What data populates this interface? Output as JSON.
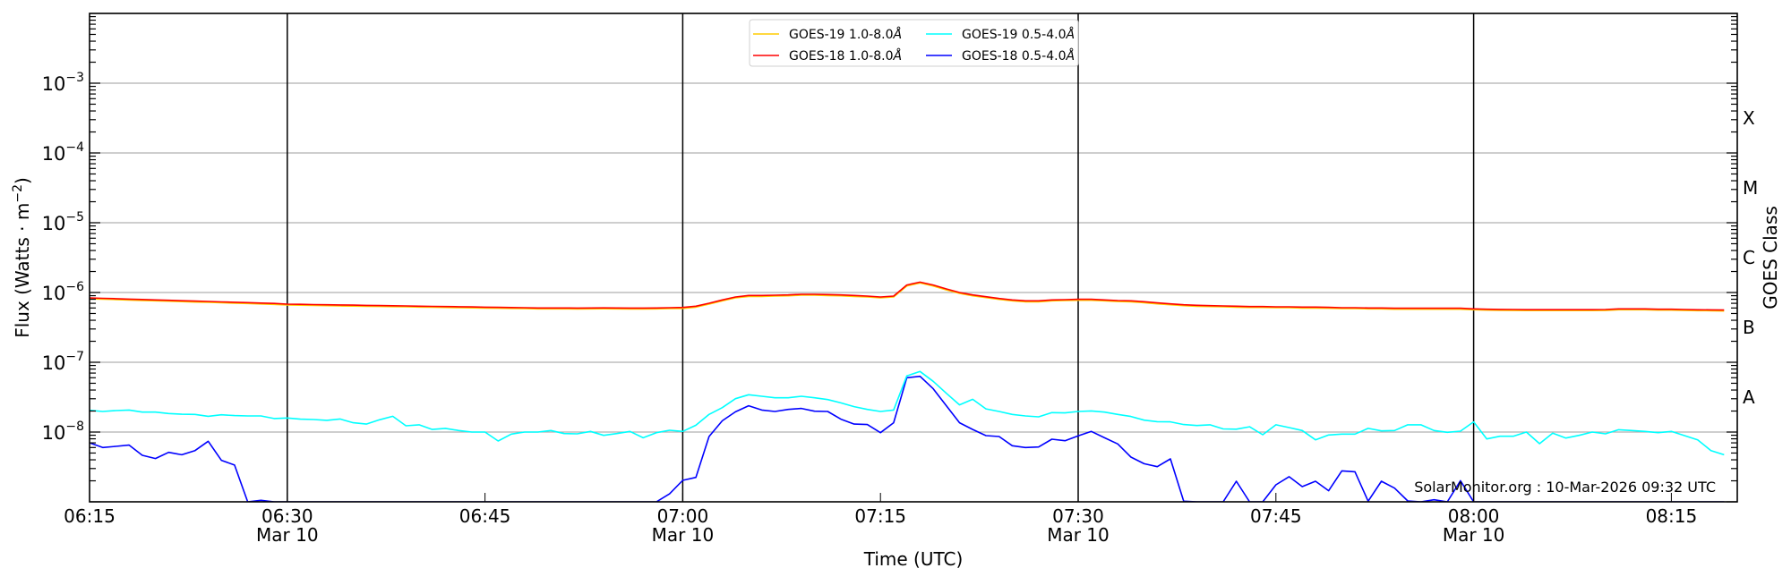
{
  "chart_data": {
    "type": "line",
    "xlabel": "Time (UTC)",
    "ylabel": "Flux (Watts · m",
    "ylabel_exponent": "−2",
    "ylabel_close": ")",
    "right_ylabel": "GOES Class",
    "yscale": "log",
    "ylim": [
      1e-09,
      0.01
    ],
    "xlim": [
      "06:15",
      "08:20"
    ],
    "grid": "horizontal at each decade",
    "legend_placement": "top-center",
    "watermark": "SolarMonitor.org : 10-Mar-2026 09:32 UTC",
    "x_ticks": [
      {
        "time": "06:15",
        "label": "06:15",
        "date": ""
      },
      {
        "time": "06:30",
        "label": "06:30",
        "date": "Mar 10"
      },
      {
        "time": "06:45",
        "label": "06:45",
        "date": ""
      },
      {
        "time": "07:00",
        "label": "07:00",
        "date": "Mar 10"
      },
      {
        "time": "07:15",
        "label": "07:15",
        "date": ""
      },
      {
        "time": "07:30",
        "label": "07:30",
        "date": "Mar 10"
      },
      {
        "time": "07:45",
        "label": "07:45",
        "date": ""
      },
      {
        "time": "08:00",
        "label": "08:00",
        "date": "Mar 10"
      },
      {
        "time": "08:15",
        "label": "08:15",
        "date": ""
      }
    ],
    "vertical_lines": [
      "06:30",
      "07:00",
      "07:30",
      "08:00"
    ],
    "y_ticks": [
      {
        "value": 0.001,
        "base": "10",
        "exp": "−3"
      },
      {
        "value": 0.0001,
        "base": "10",
        "exp": "−4"
      },
      {
        "value": 1e-05,
        "base": "10",
        "exp": "−5"
      },
      {
        "value": 1e-06,
        "base": "10",
        "exp": "−6"
      },
      {
        "value": 1e-07,
        "base": "10",
        "exp": "−7"
      },
      {
        "value": 1e-08,
        "base": "10",
        "exp": "−8"
      }
    ],
    "goes_classes": [
      {
        "label": "X",
        "value": 0.000316
      },
      {
        "label": "M",
        "value": 3.16e-05
      },
      {
        "label": "C",
        "value": 3.16e-06
      },
      {
        "label": "B",
        "value": 3.16e-07
      },
      {
        "label": "A",
        "value": 3.16e-08
      }
    ],
    "x": [
      "06:15",
      "06:16",
      "06:17",
      "06:18",
      "06:19",
      "06:20",
      "06:21",
      "06:22",
      "06:23",
      "06:24",
      "06:25",
      "06:26",
      "06:27",
      "06:28",
      "06:29",
      "06:30",
      "06:31",
      "06:32",
      "06:33",
      "06:34",
      "06:35",
      "06:36",
      "06:37",
      "06:38",
      "06:39",
      "06:40",
      "06:41",
      "06:42",
      "06:43",
      "06:44",
      "06:45",
      "06:46",
      "06:47",
      "06:48",
      "06:49",
      "06:50",
      "06:51",
      "06:52",
      "06:53",
      "06:54",
      "06:55",
      "06:56",
      "06:57",
      "06:58",
      "06:59",
      "07:00",
      "07:01",
      "07:02",
      "07:03",
      "07:04",
      "07:05",
      "07:06",
      "07:07",
      "07:08",
      "07:09",
      "07:10",
      "07:11",
      "07:12",
      "07:13",
      "07:14",
      "07:15",
      "07:16",
      "07:17",
      "07:18",
      "07:19",
      "07:20",
      "07:21",
      "07:22",
      "07:23",
      "07:24",
      "07:25",
      "07:26",
      "07:27",
      "07:28",
      "07:29",
      "07:30",
      "07:31",
      "07:32",
      "07:33",
      "07:34",
      "07:35",
      "07:36",
      "07:37",
      "07:38",
      "07:39",
      "07:40",
      "07:41",
      "07:42",
      "07:43",
      "07:44",
      "07:45",
      "07:46",
      "07:47",
      "07:48",
      "07:49",
      "07:50",
      "07:51",
      "07:52",
      "07:53",
      "07:54",
      "07:55",
      "07:56",
      "07:57",
      "07:58",
      "07:59",
      "08:00",
      "08:01",
      "08:02",
      "08:03",
      "08:04",
      "08:05",
      "08:06",
      "08:07",
      "08:08",
      "08:09",
      "08:10",
      "08:11",
      "08:12",
      "08:13",
      "08:14",
      "08:15",
      "08:16",
      "08:17",
      "08:18",
      "08:19"
    ],
    "series": [
      {
        "name": "GOES-19 1.0-8.0",
        "unit": "Å",
        "color": "#ffcc00",
        "values": [
          8.12e-07,
          8.01e-07,
          7.91e-07,
          7.8e-07,
          7.7e-07,
          7.6e-07,
          7.5e-07,
          7.4e-07,
          7.3e-07,
          7.22e-07,
          7.12e-07,
          7.03e-07,
          6.95e-07,
          6.85e-07,
          6.76e-07,
          6.61e-07,
          6.57e-07,
          6.52e-07,
          6.48e-07,
          6.43e-07,
          6.39e-07,
          6.34e-07,
          6.31e-07,
          6.27e-07,
          6.23e-07,
          6.18e-07,
          6.14e-07,
          6.1e-07,
          6.06e-07,
          6.02e-07,
          5.98e-07,
          5.95e-07,
          5.91e-07,
          5.87e-07,
          5.82e-07,
          5.82e-07,
          5.82e-07,
          5.8e-07,
          5.82e-07,
          5.84e-07,
          5.82e-07,
          5.8e-07,
          5.8e-07,
          5.82e-07,
          5.87e-07,
          5.92e-07,
          6.17e-07,
          6.81e-07,
          7.59e-07,
          8.37e-07,
          8.79e-07,
          8.79e-07,
          8.88e-07,
          8.96e-07,
          9.15e-07,
          9.15e-07,
          9.05e-07,
          8.96e-07,
          8.79e-07,
          8.62e-07,
          8.37e-07,
          8.62e-07,
          1.24e-06,
          1.37e-06,
          1.24e-06,
          1.09e-06,
          9.7e-07,
          8.96e-07,
          8.45e-07,
          7.96e-07,
          7.59e-07,
          7.36e-07,
          7.36e-07,
          7.59e-07,
          7.66e-07,
          7.74e-07,
          7.74e-07,
          7.59e-07,
          7.43e-07,
          7.36e-07,
          7.15e-07,
          6.88e-07,
          6.67e-07,
          6.48e-07,
          6.35e-07,
          6.29e-07,
          6.23e-07,
          6.17e-07,
          6.11e-07,
          6.11e-07,
          6.05e-07,
          6.05e-07,
          5.99e-07,
          5.99e-07,
          5.94e-07,
          5.88e-07,
          5.88e-07,
          5.82e-07,
          5.82e-07,
          5.76e-07,
          5.76e-07,
          5.76e-07,
          5.76e-07,
          5.76e-07,
          5.76e-07,
          5.65e-07,
          5.59e-07,
          5.55e-07,
          5.53e-07,
          5.51e-07,
          5.51e-07,
          5.51e-07,
          5.51e-07,
          5.51e-07,
          5.51e-07,
          5.53e-07,
          5.65e-07,
          5.65e-07,
          5.65e-07,
          5.59e-07,
          5.59e-07,
          5.53e-07,
          5.49e-07,
          5.47e-07,
          5.43e-07
        ]
      },
      {
        "name": "GOES-18 1.0-8.0",
        "unit": "Å",
        "color": "#ff0000",
        "values": [
          8.37e-07,
          8.26e-07,
          8.15e-07,
          8.04e-07,
          7.94e-07,
          7.83e-07,
          7.73e-07,
          7.63e-07,
          7.53e-07,
          7.44e-07,
          7.34e-07,
          7.25e-07,
          7.16e-07,
          7.06e-07,
          6.97e-07,
          6.81e-07,
          6.77e-07,
          6.72e-07,
          6.68e-07,
          6.63e-07,
          6.59e-07,
          6.54e-07,
          6.5e-07,
          6.46e-07,
          6.42e-07,
          6.37e-07,
          6.33e-07,
          6.29e-07,
          6.25e-07,
          6.21e-07,
          6.17e-07,
          6.13e-07,
          6.09e-07,
          6.05e-07,
          6e-07,
          6e-07,
          6e-07,
          5.98e-07,
          6e-07,
          6.02e-07,
          6e-07,
          5.98e-07,
          5.98e-07,
          6e-07,
          6.05e-07,
          6.1e-07,
          6.36e-07,
          7.02e-07,
          7.82e-07,
          8.63e-07,
          9.06e-07,
          9.06e-07,
          9.15e-07,
          9.24e-07,
          9.43e-07,
          9.43e-07,
          9.33e-07,
          9.24e-07,
          9.06e-07,
          8.89e-07,
          8.63e-07,
          8.89e-07,
          1.28e-06,
          1.41e-06,
          1.28e-06,
          1.125e-06,
          1e-06,
          9.24e-07,
          8.71e-07,
          8.21e-07,
          7.82e-07,
          7.59e-07,
          7.59e-07,
          7.82e-07,
          7.9e-07,
          7.98e-07,
          7.98e-07,
          7.82e-07,
          7.66e-07,
          7.59e-07,
          7.37e-07,
          7.09e-07,
          6.88e-07,
          6.68e-07,
          6.55e-07,
          6.48e-07,
          6.42e-07,
          6.36e-07,
          6.3e-07,
          6.3e-07,
          6.24e-07,
          6.24e-07,
          6.18e-07,
          6.18e-07,
          6.12e-07,
          6.06e-07,
          6.06e-07,
          6e-07,
          6e-07,
          5.94e-07,
          5.94e-07,
          5.94e-07,
          5.94e-07,
          5.94e-07,
          5.94e-07,
          5.82e-07,
          5.76e-07,
          5.72e-07,
          5.7e-07,
          5.68e-07,
          5.68e-07,
          5.68e-07,
          5.68e-07,
          5.68e-07,
          5.68e-07,
          5.7e-07,
          5.82e-07,
          5.82e-07,
          5.82e-07,
          5.76e-07,
          5.76e-07,
          5.7e-07,
          5.66e-07,
          5.64e-07,
          5.6e-07
        ]
      },
      {
        "name": "GOES-19 0.5-4.0",
        "unit": "Å",
        "color": "#00ffff",
        "values": [
          2.05e-08,
          1.97e-08,
          2.03e-08,
          2.07e-08,
          1.93e-08,
          1.93e-08,
          1.84e-08,
          1.8e-08,
          1.79e-08,
          1.68e-08,
          1.77e-08,
          1.72e-08,
          1.7e-08,
          1.7e-08,
          1.56e-08,
          1.59e-08,
          1.53e-08,
          1.51e-08,
          1.47e-08,
          1.54e-08,
          1.36e-08,
          1.3e-08,
          1.5e-08,
          1.68e-08,
          1.23e-08,
          1.27e-08,
          1.09e-08,
          1.13e-08,
          1.05e-08,
          1e-08,
          1e-08,
          7.44e-09,
          9.34e-09,
          1e-08,
          1e-08,
          1.05e-08,
          9.52e-09,
          9.43e-09,
          1.02e-08,
          8.97e-09,
          9.52e-09,
          1.02e-08,
          8.29e-09,
          9.8e-09,
          1.06e-08,
          1.02e-08,
          1.25e-08,
          1.79e-08,
          2.24e-08,
          3.01e-08,
          3.42e-08,
          3.26e-08,
          3.1e-08,
          3.1e-08,
          3.26e-08,
          3.1e-08,
          2.92e-08,
          2.62e-08,
          2.31e-08,
          2.11e-08,
          1.97e-08,
          2.07e-08,
          6.36e-08,
          7.37e-08,
          5.33e-08,
          3.59e-08,
          2.45e-08,
          2.95e-08,
          2.15e-08,
          1.97e-08,
          1.79e-08,
          1.7e-08,
          1.65e-08,
          1.9e-08,
          1.88e-08,
          1.97e-08,
          2.01e-08,
          1.93e-08,
          1.79e-08,
          1.67e-08,
          1.48e-08,
          1.41e-08,
          1.4e-08,
          1.28e-08,
          1.24e-08,
          1.27e-08,
          1.11e-08,
          1.1e-08,
          1.19e-08,
          9.16e-09,
          1.27e-08,
          1.16e-08,
          1.05e-08,
          7.74e-09,
          9.06e-09,
          9.34e-09,
          9.34e-09,
          1.13e-08,
          1.04e-08,
          1.05e-08,
          1.27e-08,
          1.27e-08,
          1.05e-08,
          9.9e-09,
          1.03e-08,
          1.4e-08,
          7.97e-09,
          8.71e-09,
          8.71e-09,
          1e-08,
          6.81e-09,
          9.62e-09,
          8.21e-09,
          8.97e-09,
          1e-08,
          9.43e-09,
          1.08e-08,
          1.05e-08,
          1.02e-08,
          9.8e-09,
          1.02e-08,
          8.89e-09,
          7.74e-09,
          5.43e-09,
          4.73e-09
        ]
      },
      {
        "name": "GOES-18 0.5-4.0",
        "unit": "Å",
        "color": "#0000ff",
        "values": [
          7.02e-09,
          6e-09,
          6.24e-09,
          6.49e-09,
          4.64e-09,
          4.17e-09,
          5.12e-09,
          4.73e-09,
          5.43e-09,
          7.37e-09,
          3.93e-09,
          3.36e-09,
          1e-09,
          1.05e-09,
          1e-09,
          1e-09,
          1e-09,
          1e-09,
          1e-09,
          1e-09,
          1e-09,
          1e-09,
          1e-09,
          1e-09,
          1e-09,
          1e-09,
          1e-09,
          1e-09,
          1e-09,
          1e-09,
          1e-09,
          1e-09,
          1e-09,
          1e-09,
          1e-09,
          1e-09,
          1e-09,
          1e-09,
          1e-09,
          1e-09,
          1e-09,
          1e-09,
          1e-09,
          1e-09,
          1.3e-09,
          2.03e-09,
          2.24e-09,
          8.63e-09,
          1.45e-08,
          1.95e-08,
          2.38e-08,
          2.07e-08,
          1.97e-08,
          2.11e-08,
          2.18e-08,
          1.99e-08,
          1.97e-08,
          1.53e-08,
          1.3e-08,
          1.28e-08,
          9.8e-09,
          1.36e-08,
          6e-08,
          6.3e-08,
          4.17e-08,
          2.38e-08,
          1.36e-08,
          1.09e-08,
          8.89e-09,
          8.63e-09,
          6.36e-09,
          6e-09,
          6.11e-09,
          7.89e-09,
          7.52e-09,
          8.8e-09,
          1.02e-08,
          8.29e-09,
          6.75e-09,
          4.38e-09,
          3.52e-09,
          3.19e-09,
          4.12e-09,
          1.02e-09,
          1e-09,
          1e-09,
          1e-09,
          1.97e-09,
          1e-09,
          1e-09,
          1.75e-09,
          2.29e-09,
          1.65e-09,
          1.97e-09,
          1.44e-09,
          2.78e-09,
          2.7e-09,
          1.02e-09,
          1.97e-09,
          1.57e-09,
          1.03e-09,
          1e-09,
          1.07e-09,
          1e-09,
          2.01e-09,
          1e-09,
          1e-09,
          1e-09,
          1e-09,
          1e-09,
          1e-09,
          1e-09,
          1e-09,
          1e-09,
          1e-09,
          1e-09,
          1e-09,
          1e-09,
          1e-09,
          1e-09,
          1e-09,
          1e-09,
          1e-09,
          1e-09,
          1e-09
        ]
      }
    ]
  }
}
